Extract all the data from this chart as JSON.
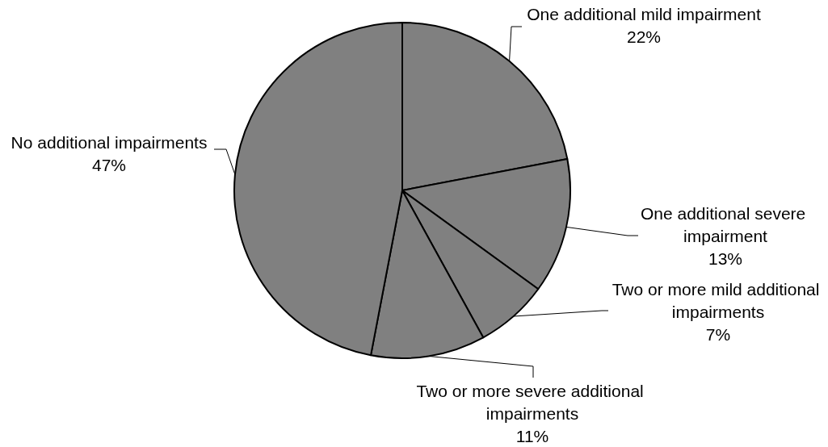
{
  "chart_data": {
    "type": "pie",
    "categories": [
      "One additional mild impairment",
      "One additional severe impairment",
      "Two or more mild additional impairments",
      "Two or more severe additional impairments",
      "No additional impairments"
    ],
    "values": [
      22,
      13,
      7,
      11,
      47
    ],
    "colors": [
      "#808080",
      "#808080",
      "#808080",
      "#808080",
      "#808080"
    ],
    "value_labels": [
      "22%",
      "13%",
      "7%",
      "11%",
      "47%"
    ]
  }
}
